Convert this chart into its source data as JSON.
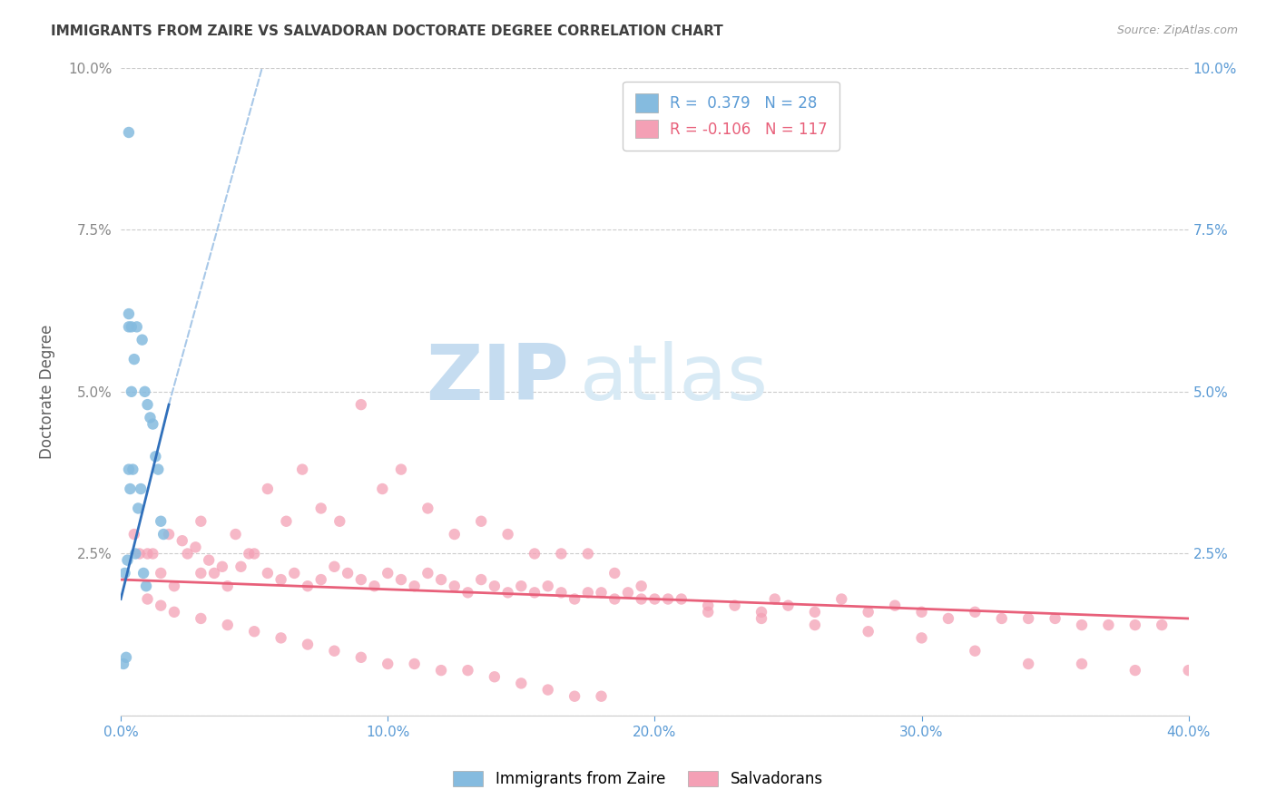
{
  "title": "IMMIGRANTS FROM ZAIRE VS SALVADORAN DOCTORATE DEGREE CORRELATION CHART",
  "source": "Source: ZipAtlas.com",
  "ylabel": "Doctorate Degree",
  "xlim": [
    0.0,
    40.0
  ],
  "ylim": [
    0.0,
    10.0
  ],
  "xticks": [
    0.0,
    10.0,
    20.0,
    30.0,
    40.0
  ],
  "xticklabels": [
    "0.0%",
    "10.0%",
    "20.0%",
    "30.0%",
    "40.0%"
  ],
  "yticks_left": [
    0.0,
    2.5,
    5.0,
    7.5,
    10.0
  ],
  "yticklabels_left": [
    "",
    "2.5%",
    "5.0%",
    "7.5%",
    "10.0%"
  ],
  "yticks_right": [
    0.0,
    2.5,
    5.0,
    7.5,
    10.0
  ],
  "yticklabels_right": [
    "",
    "2.5%",
    "5.0%",
    "7.5%",
    "10.0%"
  ],
  "blue_color": "#85BBDF",
  "pink_color": "#F4A0B5",
  "blue_line_color": "#3070BB",
  "pink_line_color": "#E8607A",
  "dashed_line_color": "#A8C8E8",
  "legend_R_blue": "0.379",
  "legend_N_blue": "28",
  "legend_R_pink": "-0.106",
  "legend_N_pink": "117",
  "legend_label_blue": "Immigrants from Zaire",
  "legend_label_pink": "Salvadorans",
  "watermark_zip": "ZIP",
  "watermark_atlas": "atlas",
  "right_ytick_color": "#5B9BD5",
  "title_color": "#404040",
  "axis_label_color": "#606060",
  "tick_color": "#888888",
  "grid_color": "#CCCCCC",
  "blue_points_x": [
    0.3,
    0.5,
    0.3,
    0.4,
    0.6,
    0.8,
    0.9,
    1.0,
    1.1,
    1.2,
    1.3,
    1.4,
    1.5,
    1.6,
    0.4,
    0.3,
    0.2,
    0.1,
    0.15,
    0.25,
    0.35,
    0.45,
    0.55,
    0.65,
    0.75,
    0.85,
    0.95,
    0.3
  ],
  "blue_points_y": [
    6.0,
    5.5,
    6.2,
    6.0,
    6.0,
    5.8,
    5.0,
    4.8,
    4.6,
    4.5,
    4.0,
    3.8,
    3.0,
    2.8,
    5.0,
    9.0,
    0.9,
    0.8,
    2.2,
    2.4,
    3.5,
    3.8,
    2.5,
    3.2,
    3.5,
    2.2,
    2.0,
    3.8
  ],
  "pink_points_x": [
    1.0,
    1.5,
    2.0,
    2.5,
    3.0,
    3.0,
    3.5,
    4.0,
    4.5,
    5.0,
    5.5,
    6.0,
    6.5,
    7.0,
    7.5,
    8.0,
    8.5,
    9.0,
    9.5,
    10.0,
    10.5,
    11.0,
    11.5,
    12.0,
    12.5,
    13.0,
    13.5,
    14.0,
    14.5,
    15.0,
    15.5,
    16.0,
    16.5,
    17.0,
    17.5,
    18.0,
    18.5,
    19.0,
    19.5,
    20.0,
    21.0,
    22.0,
    23.0,
    24.0,
    24.5,
    25.0,
    26.0,
    27.0,
    28.0,
    29.0,
    30.0,
    31.0,
    32.0,
    33.0,
    34.0,
    35.0,
    36.0,
    37.0,
    38.0,
    39.0,
    0.5,
    0.7,
    1.2,
    1.8,
    2.3,
    2.8,
    3.3,
    3.8,
    4.3,
    4.8,
    5.5,
    6.2,
    6.8,
    7.5,
    8.2,
    9.0,
    9.8,
    10.5,
    11.5,
    12.5,
    13.5,
    14.5,
    15.5,
    16.5,
    17.5,
    18.5,
    19.5,
    20.5,
    22.0,
    24.0,
    26.0,
    28.0,
    30.0,
    32.0,
    34.0,
    36.0,
    38.0,
    40.0,
    1.0,
    1.5,
    2.0,
    3.0,
    4.0,
    5.0,
    6.0,
    7.0,
    8.0,
    9.0,
    10.0,
    11.0,
    12.0,
    13.0,
    14.0,
    15.0,
    16.0,
    17.0,
    18.0
  ],
  "pink_points_y": [
    2.5,
    2.2,
    2.0,
    2.5,
    2.2,
    3.0,
    2.2,
    2.0,
    2.3,
    2.5,
    2.2,
    2.1,
    2.2,
    2.0,
    2.1,
    2.3,
    2.2,
    2.1,
    2.0,
    2.2,
    2.1,
    2.0,
    2.2,
    2.1,
    2.0,
    1.9,
    2.1,
    2.0,
    1.9,
    2.0,
    1.9,
    2.0,
    1.9,
    1.8,
    1.9,
    1.9,
    1.8,
    1.9,
    1.8,
    1.8,
    1.8,
    1.7,
    1.7,
    1.6,
    1.8,
    1.7,
    1.6,
    1.8,
    1.6,
    1.7,
    1.6,
    1.5,
    1.6,
    1.5,
    1.5,
    1.5,
    1.4,
    1.4,
    1.4,
    1.4,
    2.8,
    2.5,
    2.5,
    2.8,
    2.7,
    2.6,
    2.4,
    2.3,
    2.8,
    2.5,
    3.5,
    3.0,
    3.8,
    3.2,
    3.0,
    4.8,
    3.5,
    3.8,
    3.2,
    2.8,
    3.0,
    2.8,
    2.5,
    2.5,
    2.5,
    2.2,
    2.0,
    1.8,
    1.6,
    1.5,
    1.4,
    1.3,
    1.2,
    1.0,
    0.8,
    0.8,
    0.7,
    0.7,
    1.8,
    1.7,
    1.6,
    1.5,
    1.4,
    1.3,
    1.2,
    1.1,
    1.0,
    0.9,
    0.8,
    0.8,
    0.7,
    0.7,
    0.6,
    0.5,
    0.4,
    0.3,
    0.3
  ],
  "blue_line_x": [
    0.0,
    1.8
  ],
  "blue_line_y": [
    1.8,
    4.8
  ],
  "pink_line_x": [
    0.0,
    40.0
  ],
  "pink_line_y": [
    2.1,
    1.5
  ]
}
